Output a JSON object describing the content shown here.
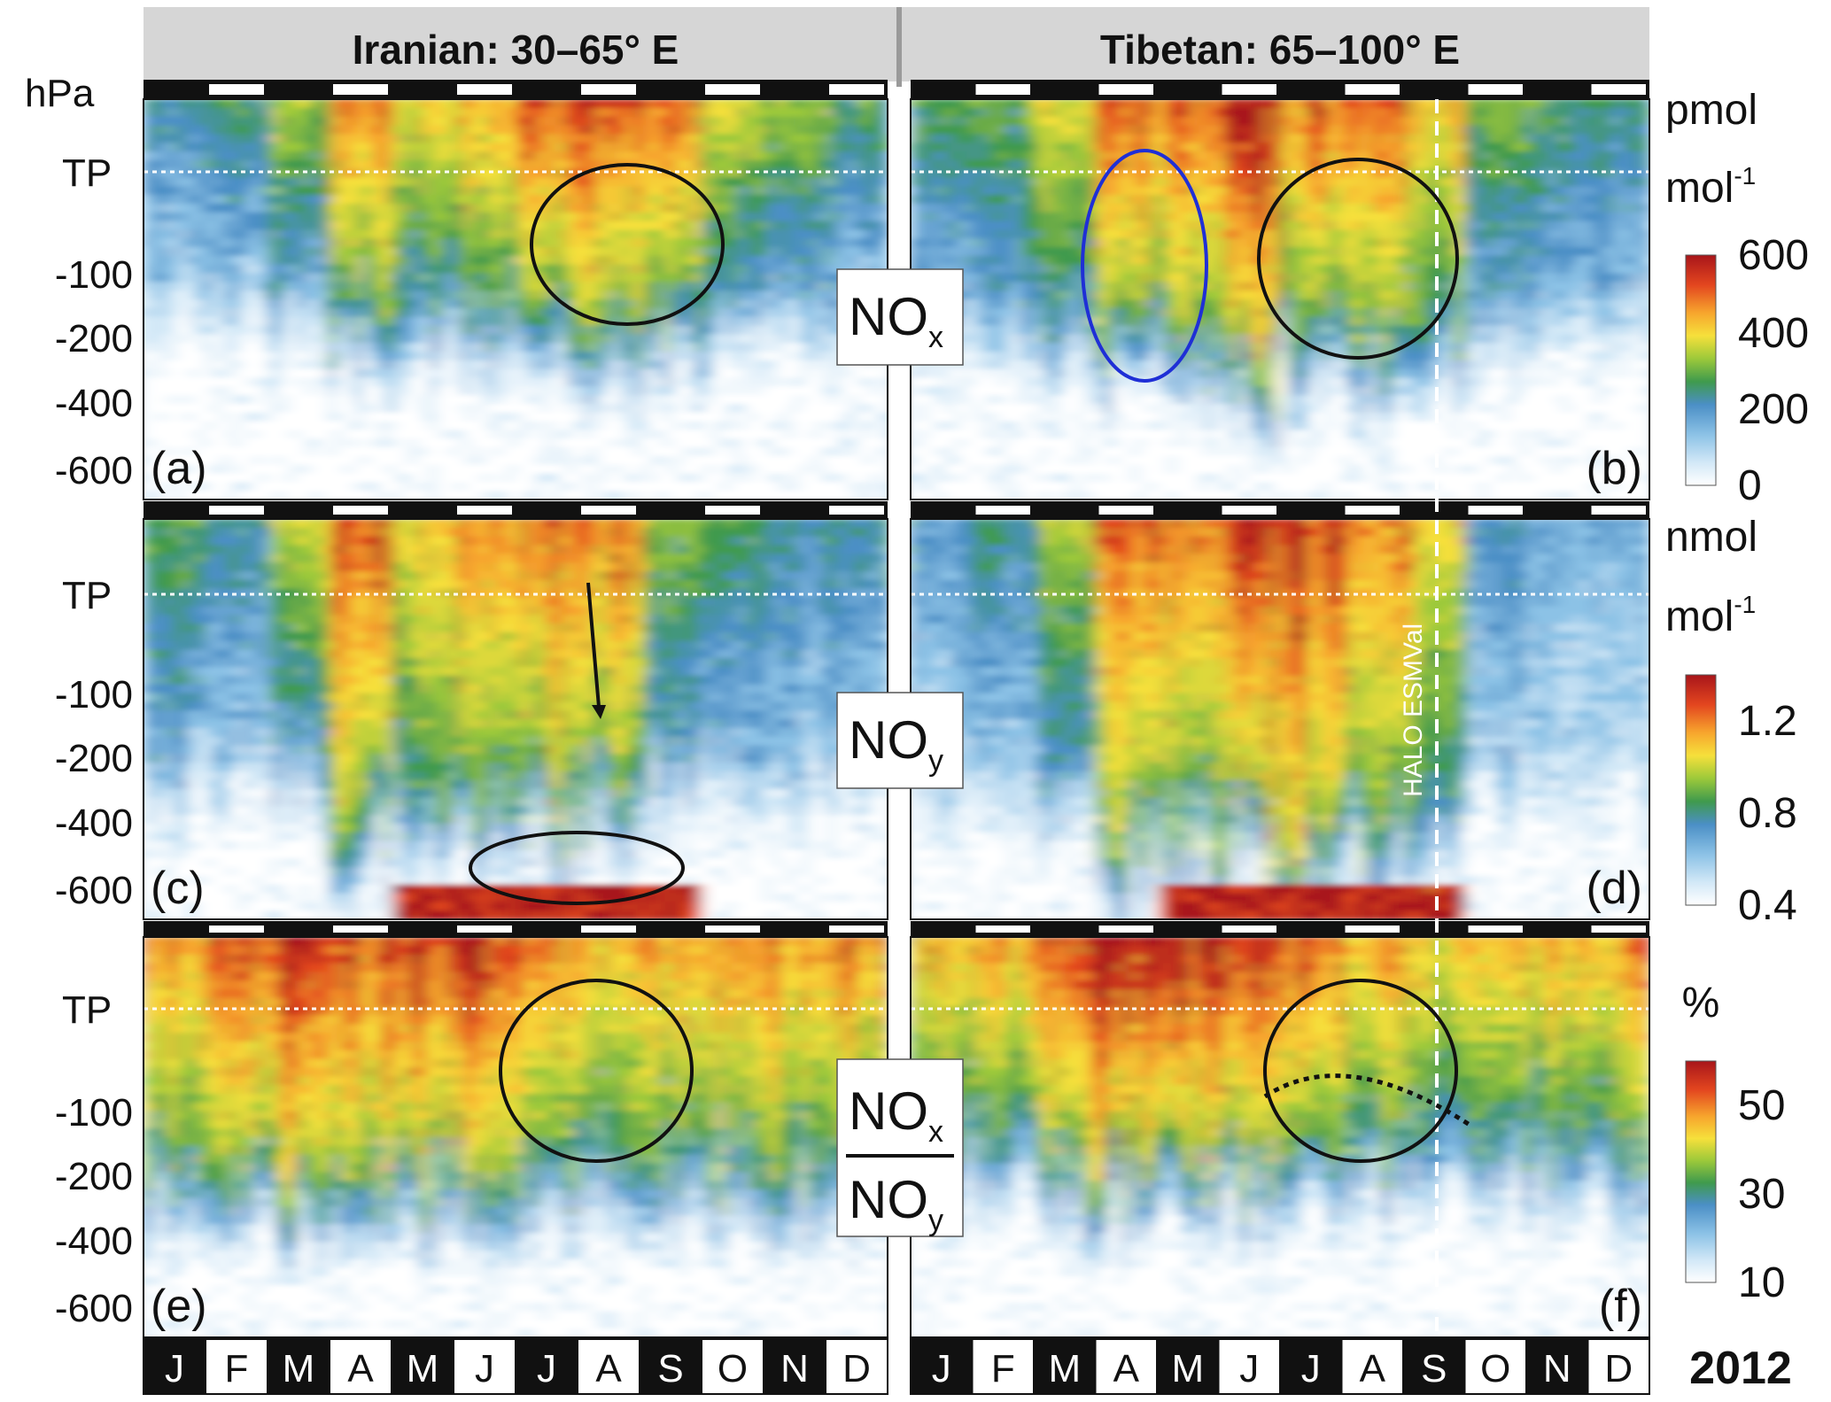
{
  "headers": [
    "Iranian: 30–65° E",
    "Tibetan: 65–100° E"
  ],
  "y_axis": {
    "top_label": "hPa",
    "tp_label": "TP",
    "ticks": [
      "-100",
      "-200",
      "-400",
      "-600"
    ]
  },
  "months": [
    "J",
    "F",
    "M",
    "A",
    "M",
    "J",
    "J",
    "A",
    "S",
    "O",
    "N",
    "D"
  ],
  "year": "2012",
  "validation_label": "HALO ESMVal",
  "chart_data": [
    {
      "type": "heatmap",
      "rows": [
        {
          "species": "NOx",
          "species_sub": "x",
          "colorbar": {
            "unit_top": "pmol",
            "unit_bottom": "mol",
            "unit_exp": "-1",
            "ticks": [
              "600",
              "400",
              "200",
              "0"
            ],
            "range": [
              0,
              600
            ]
          },
          "panels": [
            {
              "region": "Iranian: 30–65° E",
              "label": "(a)"
            },
            {
              "region": "Tibetan: 65–100° E",
              "label": "(b)"
            }
          ]
        },
        {
          "species": "NOy",
          "species_sub": "y",
          "colorbar": {
            "unit_top": "nmol",
            "unit_bottom": "mol",
            "unit_exp": "-1",
            "ticks": [
              "1.2",
              "0.8",
              "0.4"
            ],
            "range": [
              0.4,
              1.4
            ]
          },
          "panels": [
            {
              "region": "Iranian: 30–65° E",
              "label": "(c)"
            },
            {
              "region": "Tibetan: 65–100° E",
              "label": "(d)"
            }
          ]
        },
        {
          "species": "NOx/NOy",
          "species_num": "NO",
          "species_num_sub": "x",
          "species_den": "NO",
          "species_den_sub": "y",
          "colorbar": {
            "unit_top": "%",
            "ticks": [
              "50",
              "30",
              "10"
            ],
            "range": [
              0,
              60
            ]
          },
          "panels": [
            {
              "region": "Iranian: 30–65° E",
              "label": "(e)"
            },
            {
              "region": "Tibetan: 65–100° E",
              "label": "(f)"
            }
          ]
        }
      ],
      "y_axis": {
        "ticks": [
          "TP",
          "-100",
          "-200",
          "-400",
          "-600"
        ],
        "unit": "hPa"
      },
      "x_axis": {
        "ticks": [
          "J",
          "F",
          "M",
          "A",
          "M",
          "J",
          "J",
          "A",
          "S",
          "O",
          "N",
          "D"
        ],
        "year": "2012"
      },
      "marker": {
        "label": "HALO ESMVal",
        "panel_side": "Tibetan: 65–100° E",
        "month": "S"
      },
      "colorscale": [
        "#ffffff",
        "#d2e8f7",
        "#8cc2e6",
        "#4b8fc6",
        "#3f9a4d",
        "#9cc93a",
        "#f6e03b",
        "#f7a52d",
        "#e3461f",
        "#a8151a"
      ]
    }
  ],
  "colors": {
    "header_band": "#d6d6d6",
    "ellipse_black": "#111111",
    "ellipse_blue": "#1f2fd6",
    "tp_line": "#ffffff"
  }
}
